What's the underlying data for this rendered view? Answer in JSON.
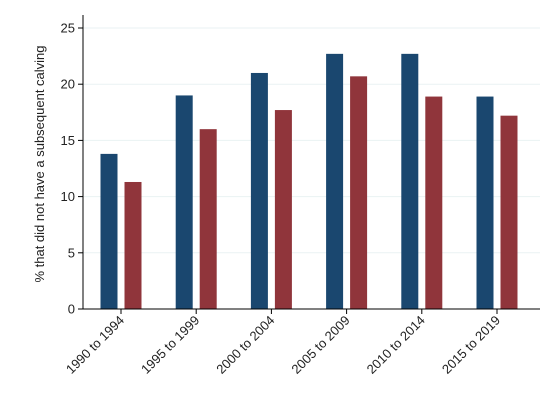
{
  "chart_data": {
    "type": "bar",
    "title": "",
    "xlabel": "",
    "ylabel": "% that did not have a subsequent calving",
    "categories": [
      "1990 to 1994",
      "1995 to 1999",
      "2000 to 2004",
      "2005 to 2009",
      "2010 to 2014",
      "2015 to 2019"
    ],
    "series": [
      {
        "values": [
          13.8,
          19.0,
          21.0,
          22.7,
          22.7,
          18.9
        ]
      },
      {
        "values": [
          11.3,
          16.0,
          17.7,
          20.7,
          18.9,
          17.2
        ]
      }
    ],
    "ylim": [
      0,
      25
    ],
    "yticks": [
      "0",
      "5",
      "10",
      "15",
      "20",
      "25"
    ],
    "grid": true,
    "legend": "none",
    "colors": [
      "#1a476f",
      "#90353b"
    ]
  }
}
